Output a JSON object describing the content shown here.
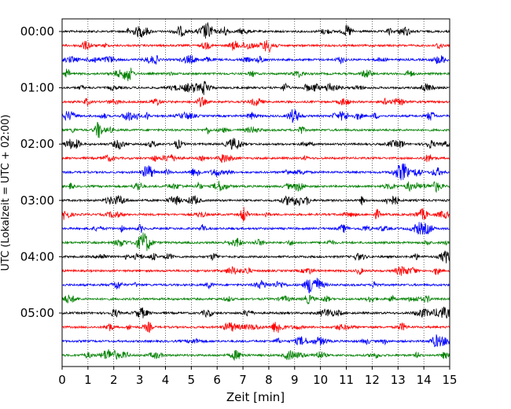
{
  "chart_data": {
    "type": "line",
    "title": "",
    "xlabel": "Zeit  [min]",
    "ylabel": "UTC (Lokalzeit = UTC + 02:00)",
    "xlim": [
      0,
      15
    ],
    "x_ticks": [
      "0",
      "1",
      "2",
      "3",
      "4",
      "5",
      "6",
      "7",
      "8",
      "9",
      "10",
      "11",
      "12",
      "13",
      "14",
      "15"
    ],
    "y_ticks": [
      "00:00",
      "01:00",
      "02:00",
      "03:00",
      "04:00",
      "05:00"
    ],
    "grid": "vertical dotted lines at each minute",
    "legend": "none",
    "colors": [
      "#000000",
      "#ff0000",
      "#0000ff",
      "#008000"
    ],
    "traces_per_hour": 4,
    "minutes_per_trace": 15,
    "series": [
      {
        "start": "00:00",
        "color": "#000000"
      },
      {
        "start": "00:15",
        "color": "#ff0000"
      },
      {
        "start": "00:30",
        "color": "#0000ff"
      },
      {
        "start": "00:45",
        "color": "#008000"
      },
      {
        "start": "01:00",
        "color": "#000000"
      },
      {
        "start": "01:15",
        "color": "#ff0000"
      },
      {
        "start": "01:30",
        "color": "#0000ff"
      },
      {
        "start": "01:45",
        "color": "#008000"
      },
      {
        "start": "02:00",
        "color": "#000000"
      },
      {
        "start": "02:15",
        "color": "#ff0000"
      },
      {
        "start": "02:30",
        "color": "#0000ff"
      },
      {
        "start": "02:45",
        "color": "#008000"
      },
      {
        "start": "03:00",
        "color": "#000000"
      },
      {
        "start": "03:15",
        "color": "#ff0000"
      },
      {
        "start": "03:30",
        "color": "#0000ff"
      },
      {
        "start": "03:45",
        "color": "#008000"
      },
      {
        "start": "04:00",
        "color": "#000000"
      },
      {
        "start": "04:15",
        "color": "#ff0000"
      },
      {
        "start": "04:30",
        "color": "#0000ff"
      },
      {
        "start": "04:45",
        "color": "#008000"
      },
      {
        "start": "05:00",
        "color": "#000000"
      },
      {
        "start": "05:15",
        "color": "#ff0000"
      },
      {
        "start": "05:30",
        "color": "#0000ff"
      },
      {
        "start": "05:45",
        "color": "#008000"
      }
    ]
  }
}
